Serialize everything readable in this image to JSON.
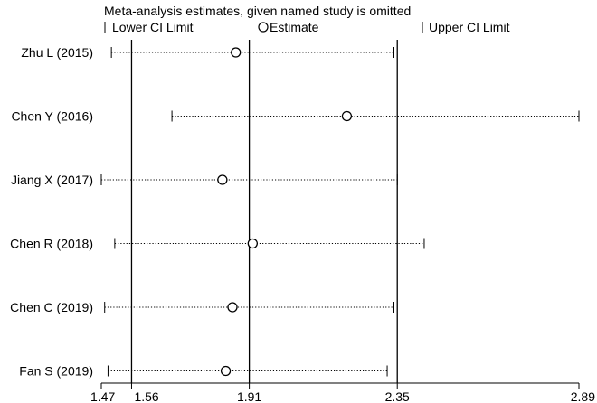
{
  "chart_data": {
    "type": "forest-sensitivity",
    "title": "Meta-analysis estimates, given named study is omitted",
    "legend": {
      "lower": "Lower CI Limit",
      "estimate": "Estimate",
      "upper": "Upper CI Limit"
    },
    "x_ticks": [
      1.47,
      1.56,
      1.91,
      2.35,
      2.89
    ],
    "x_tick_labels": [
      "1.47",
      "1.56",
      "1.91",
      "2.35",
      "2.89"
    ],
    "xlim": [
      1.47,
      2.89
    ],
    "reference_lines": [
      1.56,
      1.91,
      2.35
    ],
    "studies": [
      {
        "label": "Zhu L (2015)",
        "lower": 1.5,
        "estimate": 1.87,
        "upper": 2.34
      },
      {
        "label": "Chen Y (2016)",
        "lower": 1.68,
        "estimate": 2.2,
        "upper": 2.89
      },
      {
        "label": "Jiang X (2017)",
        "lower": 1.47,
        "estimate": 1.83,
        "upper": 2.35
      },
      {
        "label": "Chen R (2018)",
        "lower": 1.51,
        "estimate": 1.92,
        "upper": 2.43
      },
      {
        "label": "Chen C (2019)",
        "lower": 1.48,
        "estimate": 1.86,
        "upper": 2.34
      },
      {
        "label": "Fan S (2019)",
        "lower": 1.49,
        "estimate": 1.84,
        "upper": 2.32
      }
    ]
  }
}
